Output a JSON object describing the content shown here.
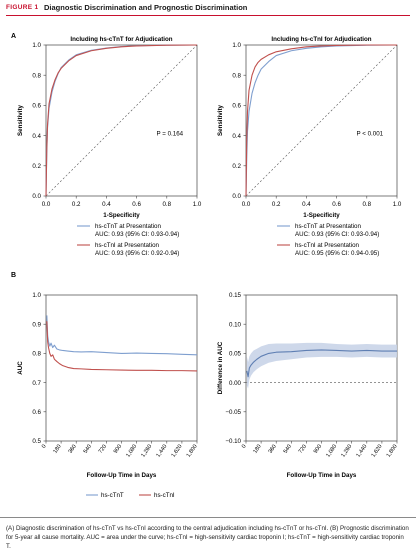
{
  "figure": {
    "label": "FIGURE 1",
    "title": "Diagnostic Discrimination and Prognostic Discrimination"
  },
  "colors": {
    "tnt": "#7f9fcf",
    "tni": "#c0504d",
    "band": "#c9d4e8",
    "diff_line": "#5f7fb3"
  },
  "chart_data": [
    {
      "panel": "A",
      "type": "line",
      "title": "Including hs-cTnT for Adjudication",
      "xlabel": "1-Specificity",
      "ylabel": "Sensitivity",
      "xlim": [
        0,
        1
      ],
      "ylim": [
        0,
        1
      ],
      "x_ticks": [
        "0.0",
        "0.2",
        "0.4",
        "0.6",
        "0.8",
        "1.0"
      ],
      "y_ticks": [
        "0.0",
        "0.2",
        "0.4",
        "0.6",
        "0.8",
        "1.0"
      ],
      "annotation": "P = 0.164",
      "reference_line": [
        [
          0,
          0
        ],
        [
          1,
          1
        ]
      ],
      "legend": [
        {
          "line1": "hs-cTnT at Presentation",
          "line2": "AUC: 0.93 (95% CI: 0.93-0.94)",
          "color": "#7f9fcf"
        },
        {
          "line1": "hs-cTnI at Presentation",
          "line2": "AUC: 0.93 (95% CI: 0.92-0.94)",
          "color": "#c0504d"
        }
      ],
      "series": [
        {
          "name": "hs-cTnT at Presentation",
          "color": "#7f9fcf",
          "points": [
            [
              0,
              0
            ],
            [
              0.005,
              0.28
            ],
            [
              0.01,
              0.45
            ],
            [
              0.02,
              0.58
            ],
            [
              0.04,
              0.69
            ],
            [
              0.06,
              0.76
            ],
            [
              0.08,
              0.81
            ],
            [
              0.1,
              0.85
            ],
            [
              0.15,
              0.9
            ],
            [
              0.2,
              0.935
            ],
            [
              0.3,
              0.965
            ],
            [
              0.4,
              0.98
            ],
            [
              0.5,
              0.99
            ],
            [
              0.6,
              0.995
            ],
            [
              0.8,
              0.999
            ],
            [
              1,
              1
            ]
          ]
        },
        {
          "name": "hs-cTnI at Presentation",
          "color": "#c0504d",
          "points": [
            [
              0,
              0
            ],
            [
              0.005,
              0.3
            ],
            [
              0.01,
              0.47
            ],
            [
              0.02,
              0.61
            ],
            [
              0.04,
              0.71
            ],
            [
              0.06,
              0.77
            ],
            [
              0.08,
              0.815
            ],
            [
              0.1,
              0.845
            ],
            [
              0.15,
              0.895
            ],
            [
              0.2,
              0.93
            ],
            [
              0.3,
              0.962
            ],
            [
              0.4,
              0.978
            ],
            [
              0.5,
              0.988
            ],
            [
              0.6,
              0.994
            ],
            [
              0.8,
              0.999
            ],
            [
              1,
              1
            ]
          ]
        }
      ]
    },
    {
      "panel": "A-right",
      "type": "line",
      "title": "Including hs-cTnI for Adjudication",
      "xlabel": "1-Specificity",
      "ylabel": "Sensitivity",
      "xlim": [
        0,
        1
      ],
      "ylim": [
        0,
        1
      ],
      "x_ticks": [
        "0.0",
        "0.2",
        "0.4",
        "0.6",
        "0.8",
        "1.0"
      ],
      "y_ticks": [
        "0.0",
        "0.2",
        "0.4",
        "0.6",
        "0.8",
        "1.0"
      ],
      "annotation": "P < 0.001",
      "reference_line": [
        [
          0,
          0
        ],
        [
          1,
          1
        ]
      ],
      "legend": [
        {
          "line1": "hs-cTnT at Presentation",
          "line2": "AUC: 0.93 (95% CI: 0.93-0.94)",
          "color": "#7f9fcf"
        },
        {
          "line1": "hs-cTnI at Presentation",
          "line2": "AUC: 0.95 (95% CI: 0.94-0.95)",
          "color": "#c0504d"
        }
      ],
      "series": [
        {
          "name": "hs-cTnT at Presentation",
          "color": "#7f9fcf",
          "points": [
            [
              0,
              0
            ],
            [
              0.005,
              0.26
            ],
            [
              0.01,
              0.43
            ],
            [
              0.02,
              0.56
            ],
            [
              0.04,
              0.68
            ],
            [
              0.06,
              0.75
            ],
            [
              0.08,
              0.8
            ],
            [
              0.1,
              0.84
            ],
            [
              0.15,
              0.89
            ],
            [
              0.2,
              0.93
            ],
            [
              0.3,
              0.962
            ],
            [
              0.4,
              0.978
            ],
            [
              0.5,
              0.988
            ],
            [
              0.6,
              0.994
            ],
            [
              0.8,
              0.999
            ],
            [
              1,
              1
            ]
          ]
        },
        {
          "name": "hs-cTnI at Presentation",
          "color": "#c0504d",
          "points": [
            [
              0,
              0
            ],
            [
              0.005,
              0.38
            ],
            [
              0.01,
              0.56
            ],
            [
              0.02,
              0.7
            ],
            [
              0.04,
              0.8
            ],
            [
              0.06,
              0.855
            ],
            [
              0.08,
              0.885
            ],
            [
              0.1,
              0.905
            ],
            [
              0.15,
              0.935
            ],
            [
              0.2,
              0.955
            ],
            [
              0.3,
              0.975
            ],
            [
              0.4,
              0.988
            ],
            [
              0.5,
              0.994
            ],
            [
              0.6,
              0.997
            ],
            [
              0.8,
              1
            ],
            [
              1,
              1
            ]
          ]
        }
      ]
    },
    {
      "panel": "B",
      "type": "line",
      "xlabel": "Follow-Up Time in Days",
      "ylabel": "AUC",
      "xlim": [
        0,
        1800
      ],
      "ylim": [
        0.5,
        1.0
      ],
      "x_ticks": [
        "0",
        "180",
        "360",
        "540",
        "720",
        "900",
        "1,080",
        "1,260",
        "1,440",
        "1,620",
        "1,800"
      ],
      "y_ticks": [
        "0.5",
        "0.6",
        "0.7",
        "0.8",
        "0.9",
        "1.0"
      ],
      "legend": [
        {
          "label": "hs-cTnT",
          "color": "#7f9fcf"
        },
        {
          "label": "hs-cTnI",
          "color": "#c0504d"
        }
      ],
      "series": [
        {
          "name": "hs-cTnT",
          "color": "#7f9fcf",
          "points": [
            [
              10,
              0.93
            ],
            [
              20,
              0.86
            ],
            [
              30,
              0.84
            ],
            [
              45,
              0.825
            ],
            [
              60,
              0.835
            ],
            [
              80,
              0.82
            ],
            [
              100,
              0.828
            ],
            [
              130,
              0.815
            ],
            [
              160,
              0.812
            ],
            [
              200,
              0.81
            ],
            [
              260,
              0.808
            ],
            [
              330,
              0.806
            ],
            [
              420,
              0.805
            ],
            [
              540,
              0.806
            ],
            [
              720,
              0.803
            ],
            [
              900,
              0.8
            ],
            [
              1080,
              0.801
            ],
            [
              1260,
              0.8
            ],
            [
              1440,
              0.799
            ],
            [
              1620,
              0.797
            ],
            [
              1800,
              0.795
            ]
          ]
        },
        {
          "name": "hs-cTnI",
          "color": "#c0504d",
          "points": [
            [
              10,
              0.91
            ],
            [
              20,
              0.84
            ],
            [
              30,
              0.82
            ],
            [
              45,
              0.8
            ],
            [
              60,
              0.79
            ],
            [
              80,
              0.795
            ],
            [
              100,
              0.78
            ],
            [
              130,
              0.772
            ],
            [
              160,
              0.765
            ],
            [
              200,
              0.758
            ],
            [
              260,
              0.752
            ],
            [
              330,
              0.748
            ],
            [
              420,
              0.747
            ],
            [
              540,
              0.745
            ],
            [
              720,
              0.744
            ],
            [
              900,
              0.743
            ],
            [
              1080,
              0.742
            ],
            [
              1260,
              0.742
            ],
            [
              1440,
              0.741
            ],
            [
              1620,
              0.741
            ],
            [
              1800,
              0.74
            ]
          ]
        }
      ]
    },
    {
      "panel": "B-right",
      "type": "area",
      "xlabel": "Follow-Up Time in Days",
      "ylabel": "Difference in AUC",
      "xlim": [
        0,
        1800
      ],
      "ylim": [
        -0.1,
        0.15
      ],
      "x_ticks": [
        "0",
        "180",
        "360",
        "540",
        "720",
        "900",
        "1,080",
        "1,260",
        "1,440",
        "1,620",
        "1,800"
      ],
      "y_ticks": [
        "−0.10",
        "−0.05",
        "0.00",
        "0.05",
        "0.10",
        "0.15"
      ],
      "reference_line_y": 0,
      "series": [
        {
          "name": "Difference",
          "color": "#5f7fb3",
          "points": [
            [
              10,
              0.02
            ],
            [
              25,
              0.01
            ],
            [
              40,
              0.025
            ],
            [
              60,
              0.03
            ],
            [
              90,
              0.035
            ],
            [
              130,
              0.04
            ],
            [
              180,
              0.045
            ],
            [
              270,
              0.05
            ],
            [
              360,
              0.052
            ],
            [
              540,
              0.053
            ],
            [
              720,
              0.055
            ],
            [
              900,
              0.056
            ],
            [
              1080,
              0.055
            ],
            [
              1260,
              0.054
            ],
            [
              1440,
              0.055
            ],
            [
              1620,
              0.054
            ],
            [
              1800,
              0.054
            ]
          ],
          "lower": [
            -0.005,
            -0.01,
            0.005,
            0.012,
            0.018,
            0.023,
            0.028,
            0.034,
            0.037,
            0.04,
            0.043,
            0.044,
            0.044,
            0.043,
            0.044,
            0.043,
            0.043
          ],
          "upper": [
            0.045,
            0.035,
            0.045,
            0.05,
            0.055,
            0.058,
            0.062,
            0.066,
            0.067,
            0.067,
            0.068,
            0.068,
            0.066,
            0.065,
            0.066,
            0.065,
            0.065
          ]
        }
      ]
    }
  ],
  "caption": "(A) Diagnostic discrimination of hs-cTnT vs hs-cTnI according to the central adjudication including hs-cTnT or hs-cTnI. (B) Prognostic discrimination for 5-year all cause mortality. AUC = area under the curve; hs-cTnI = high-sensitivity cardiac troponin I; hs-cTnT = high-sensitivity cardiac troponin T."
}
